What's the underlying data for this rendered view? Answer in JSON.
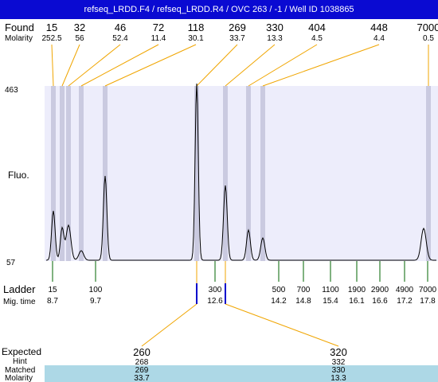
{
  "title": "refseq_LRDD.F4 / refseq_LRDD.R4 / OVC 263 / -1 / Well ID 1038865",
  "labels": {
    "found": "Found",
    "molarity": "Molarity",
    "fluo": "Fluo.",
    "ladder": "Ladder",
    "mig_time": "Mig. time",
    "expected": "Expected",
    "hint": "Hint",
    "matched": "Matched",
    "molarity_bottom": "Molarity"
  },
  "y_axis": {
    "max_label": "463",
    "min_label": "57"
  },
  "found_peaks": [
    {
      "size": "15",
      "molarity": "252.5"
    },
    {
      "size": "32",
      "molarity": "56"
    },
    {
      "size": "46",
      "molarity": "52.4"
    },
    {
      "size": "72",
      "molarity": "11.4"
    },
    {
      "size": "118",
      "molarity": "30.1"
    },
    {
      "size": "269",
      "molarity": "33.7"
    },
    {
      "size": "330",
      "molarity": "13.3"
    },
    {
      "size": "404",
      "molarity": "4.5"
    },
    {
      "size": "448",
      "molarity": "4.4"
    },
    {
      "size": "7000",
      "molarity": "0.5"
    }
  ],
  "ladder": [
    {
      "size": "15",
      "time": "8.7"
    },
    {
      "size": "100",
      "time": "9.7"
    },
    {
      "size": "300",
      "time": "12.6"
    },
    {
      "size": "500",
      "time": "14.2"
    },
    {
      "size": "700",
      "time": "14.8"
    },
    {
      "size": "1100",
      "time": "15.4"
    },
    {
      "size": "1900",
      "time": "16.1"
    },
    {
      "size": "2900",
      "time": "16.6"
    },
    {
      "size": "4900",
      "time": "17.2"
    },
    {
      "size": "7000",
      "time": "17.8"
    }
  ],
  "expected": [
    {
      "expected": "260",
      "hint": "268",
      "matched": "269",
      "molarity": "33.7"
    },
    {
      "expected": "320",
      "hint": "332",
      "matched": "330",
      "molarity": "13.3"
    }
  ],
  "colors": {
    "title_bg": "#0a0ad2",
    "plot_bg": "#ededfb",
    "peak_band": "#cacae0",
    "found_line": "#f0a500",
    "ladder_tick": "#006400",
    "matched_tick": "#0000cc",
    "matched_row_bg": "#add8e6"
  }
}
